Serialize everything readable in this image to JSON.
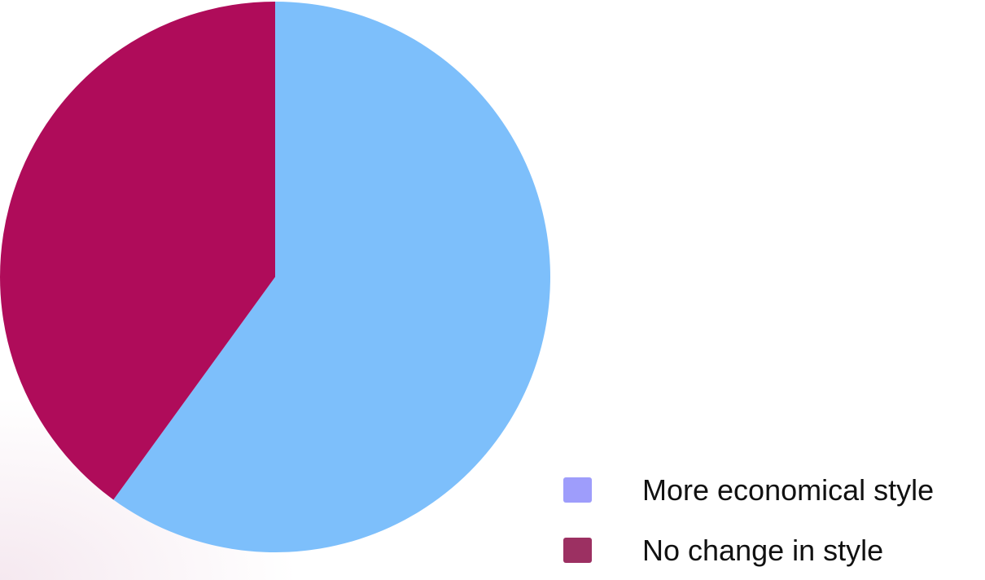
{
  "chart_data": {
    "type": "pie",
    "title": "",
    "slices": [
      {
        "label": "More economical style",
        "value": 60,
        "color": "#7DBFFB"
      },
      {
        "label": "No change in style",
        "value": 40,
        "color": "#AF0C5A"
      }
    ],
    "start_angle_deg": 0,
    "direction": "clockwise"
  },
  "legend": {
    "placement": "bottom-right",
    "items": [
      {
        "label": "More economical style",
        "swatch_color": "#9E9DFB"
      },
      {
        "label": "No change in style",
        "swatch_color": "#9C3062"
      }
    ]
  }
}
